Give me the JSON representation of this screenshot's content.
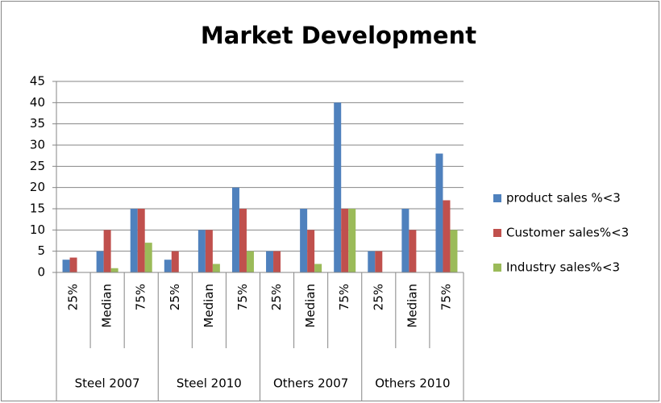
{
  "chart_data": {
    "type": "bar",
    "title": "Market Development",
    "categories": [
      "25%",
      "Median",
      "75%",
      "25%",
      "Median",
      "75%",
      "25%",
      "Median",
      "75%",
      "25%",
      "Median",
      "75%"
    ],
    "category_groups": [
      "Steel 2007",
      "Steel 2010",
      "Others 2007",
      "Others 2010"
    ],
    "series": [
      {
        "name": "product sales %<3",
        "color": "#4f81bd",
        "values": [
          3,
          5,
          15,
          3,
          10,
          20,
          5,
          15,
          40,
          5,
          15,
          28
        ]
      },
      {
        "name": "Customer sales%<3",
        "color": "#c0504d",
        "values": [
          3.5,
          10,
          15,
          5,
          10,
          15,
          5,
          10,
          15,
          5,
          10,
          17
        ]
      },
      {
        "name": "Industry sales%<3",
        "color": "#9bbb59",
        "values": [
          0,
          1,
          7,
          0,
          2,
          5,
          0,
          2,
          15,
          0,
          0,
          10
        ]
      }
    ],
    "ylim": [
      0,
      45
    ],
    "yticks": [
      0,
      5,
      10,
      15,
      20,
      25,
      30,
      35,
      40,
      45
    ],
    "grid": true,
    "legend": "right"
  }
}
